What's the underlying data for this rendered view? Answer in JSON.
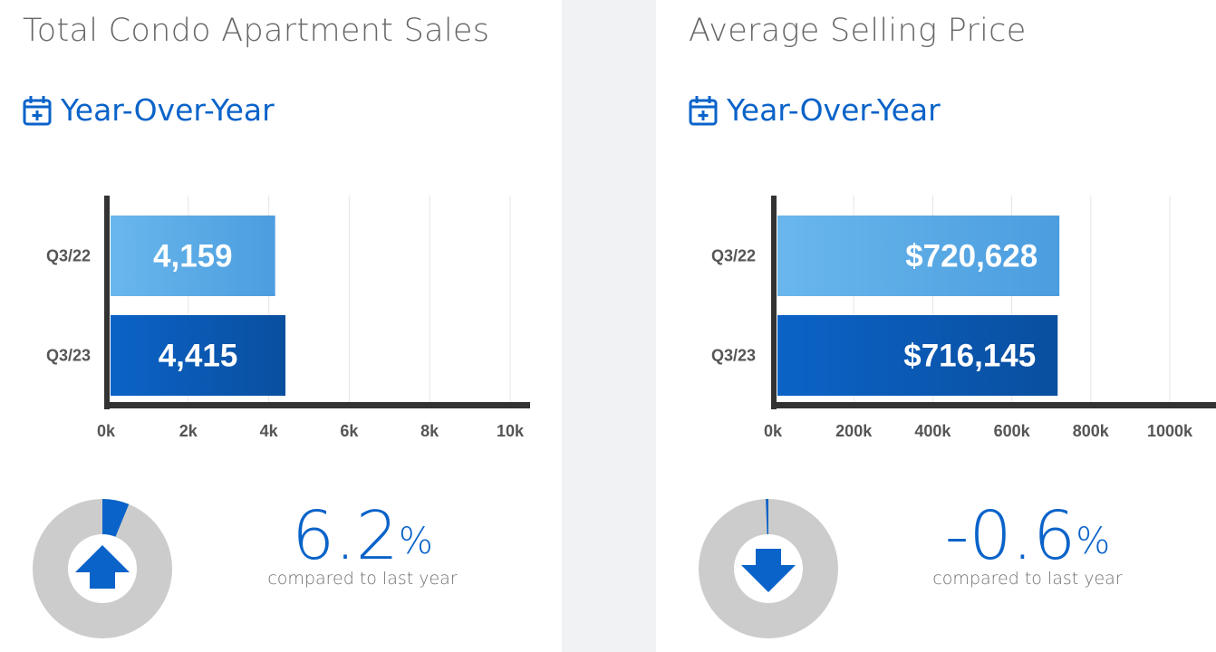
{
  "panels": [
    {
      "title": "Total Condo Apartment Sales",
      "subtitle": "Year-Over-Year",
      "change": {
        "value": "6.2",
        "sign": "%",
        "caption": "compared to last year",
        "direction": "up",
        "fraction": 0.062
      }
    },
    {
      "title": "Average Selling Price",
      "subtitle": "Year-Over-Year",
      "change": {
        "value": "-0.6",
        "sign": "%",
        "caption": "compared to last year",
        "direction": "down",
        "fraction": 0.006
      }
    }
  ],
  "chart_data": [
    {
      "type": "bar",
      "orientation": "horizontal",
      "title": "Total Condo Apartment Sales",
      "categories": [
        "Q3/22",
        "Q3/23"
      ],
      "values": [
        4159,
        4415
      ],
      "data_labels": [
        "4,159",
        "4,415"
      ],
      "xlim": [
        0,
        10000
      ],
      "xticks": [
        "0k",
        "2k",
        "4k",
        "6k",
        "8k",
        "10k"
      ],
      "bar_colors": [
        "#5aa8e6",
        "#0a5dbd"
      ],
      "grid": true
    },
    {
      "type": "bar",
      "orientation": "horizontal",
      "title": "Average Selling Price",
      "categories": [
        "Q3/22",
        "Q3/23"
      ],
      "values": [
        720628,
        716145
      ],
      "data_labels": [
        "$720,628",
        "$716,145"
      ],
      "xlim": [
        0,
        1000000
      ],
      "xticks": [
        "0k",
        "200k",
        "400k",
        "600k",
        "800k",
        "1000k"
      ],
      "bar_colors": [
        "#5aa8e6",
        "#0a5dbd"
      ],
      "grid": true
    }
  ],
  "colors": {
    "accent": "#0a63c9",
    "donut_track": "#cccccc",
    "axis": "#333333"
  },
  "icons": {
    "calendar": "calendar-plus-icon",
    "arrow_up": "arrow-up-icon",
    "arrow_down": "arrow-down-icon"
  }
}
